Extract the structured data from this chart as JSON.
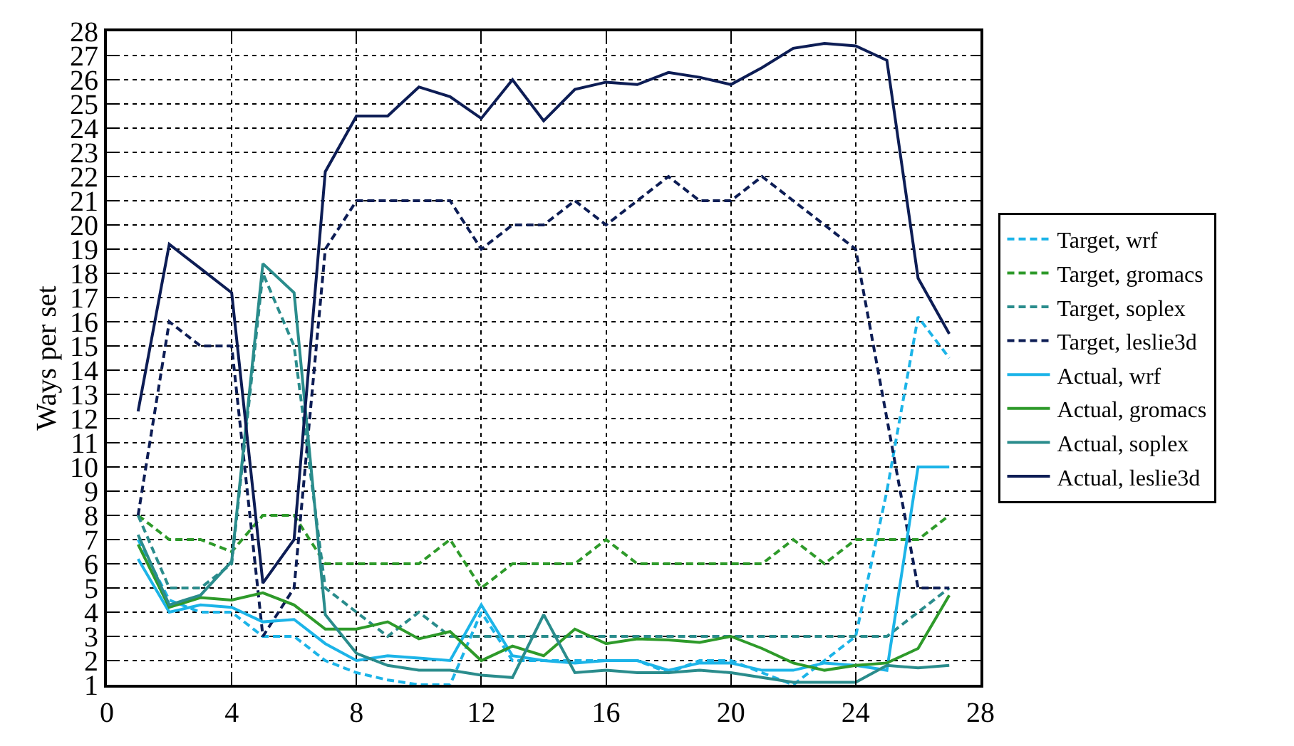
{
  "chart_data": {
    "type": "line",
    "ylabel": "Ways per set",
    "x": [
      1,
      2,
      3,
      4,
      5,
      6,
      7,
      8,
      9,
      10,
      11,
      12,
      13,
      14,
      15,
      16,
      17,
      18,
      19,
      20,
      21,
      22,
      23,
      24,
      25,
      26,
      27
    ],
    "xlim": [
      0,
      28
    ],
    "xticks": [
      0,
      4,
      8,
      12,
      16,
      20,
      24,
      28
    ],
    "ylim": [
      1,
      28
    ],
    "yticks": [
      1,
      2,
      3,
      4,
      5,
      6,
      7,
      8,
      9,
      10,
      11,
      12,
      13,
      14,
      15,
      16,
      17,
      18,
      19,
      20,
      21,
      22,
      23,
      24,
      25,
      26,
      27,
      28
    ],
    "grid": true,
    "legend": "right",
    "marker": "none",
    "series": [
      {
        "name": "Target, wrf",
        "color": "#1cb4e8",
        "line_style": "dashed",
        "values": [
          7,
          4.5,
          4,
          4,
          3,
          3,
          2,
          1.5,
          1.2,
          1,
          1,
          4,
          2,
          2,
          2,
          2,
          2,
          1.5,
          2,
          2,
          1.5,
          1,
          2,
          3,
          9,
          16.2,
          14.5
        ]
      },
      {
        "name": "Target, gromacs",
        "color": "#2e9a2a",
        "line_style": "dashed",
        "values": [
          8,
          7,
          7,
          6.5,
          8,
          8,
          6,
          6,
          6,
          6,
          7,
          5,
          6,
          6,
          6,
          7,
          6,
          6,
          6,
          6,
          6,
          7,
          6,
          7,
          7,
          7,
          8
        ]
      },
      {
        "name": "Target, soplex",
        "color": "#2a8c8c",
        "line_style": "dashed",
        "values": [
          8,
          5,
          5,
          6,
          18,
          15,
          5,
          4,
          3,
          4,
          3,
          3,
          3,
          3,
          3,
          3,
          3,
          3,
          3,
          3,
          3,
          3,
          3,
          3,
          3,
          4,
          5
        ]
      },
      {
        "name": "Target, leslie3d",
        "color": "#0d1d55",
        "line_style": "dashed",
        "values": [
          8,
          16,
          15,
          15,
          3,
          5,
          19,
          21,
          21,
          21,
          21,
          19,
          20,
          20,
          21,
          20,
          21,
          22,
          21,
          21,
          22,
          21,
          20,
          19,
          12,
          5,
          5
        ]
      },
      {
        "name": "Actual, wrf",
        "color": "#1cb4e8",
        "line_style": "solid",
        "values": [
          6.2,
          4,
          4.3,
          4.2,
          3.6,
          3.7,
          2.7,
          2,
          2.2,
          2.1,
          2,
          4.3,
          2.2,
          2,
          1.9,
          2,
          2,
          1.6,
          1.9,
          1.9,
          1.6,
          1.6,
          1.9,
          1.8,
          1.6,
          10,
          10
        ]
      },
      {
        "name": "Actual, gromacs",
        "color": "#2e9a2a",
        "line_style": "solid",
        "values": [
          6.8,
          4.2,
          4.6,
          4.5,
          4.8,
          4.3,
          3.3,
          3.3,
          3.6,
          2.9,
          3.2,
          2,
          2.6,
          2.2,
          3.3,
          2.7,
          2.9,
          2.85,
          2.75,
          3,
          2.5,
          1.9,
          1.6,
          1.8,
          1.9,
          2.5,
          4.7
        ]
      },
      {
        "name": "Actual, soplex",
        "color": "#2a8c8c",
        "line_style": "solid",
        "values": [
          7.2,
          4.3,
          4.7,
          6.1,
          18.4,
          17.2,
          3.9,
          2.3,
          1.8,
          1.6,
          1.6,
          1.4,
          1.3,
          3.9,
          1.5,
          1.6,
          1.5,
          1.5,
          1.6,
          1.5,
          1.3,
          1.1,
          1.1,
          1.1,
          1.8,
          1.7,
          1.8
        ]
      },
      {
        "name": "Actual, leslie3d",
        "color": "#0d1d55",
        "line_style": "solid",
        "values": [
          12.3,
          19.2,
          18.2,
          17.2,
          5.2,
          7,
          22.2,
          24.5,
          24.5,
          25.7,
          25.3,
          24.4,
          26,
          24.3,
          25.6,
          25.9,
          25.8,
          26.3,
          26.1,
          25.8,
          26.5,
          27.3,
          27.5,
          27.4,
          26.8,
          17.8,
          15.5
        ]
      }
    ]
  }
}
